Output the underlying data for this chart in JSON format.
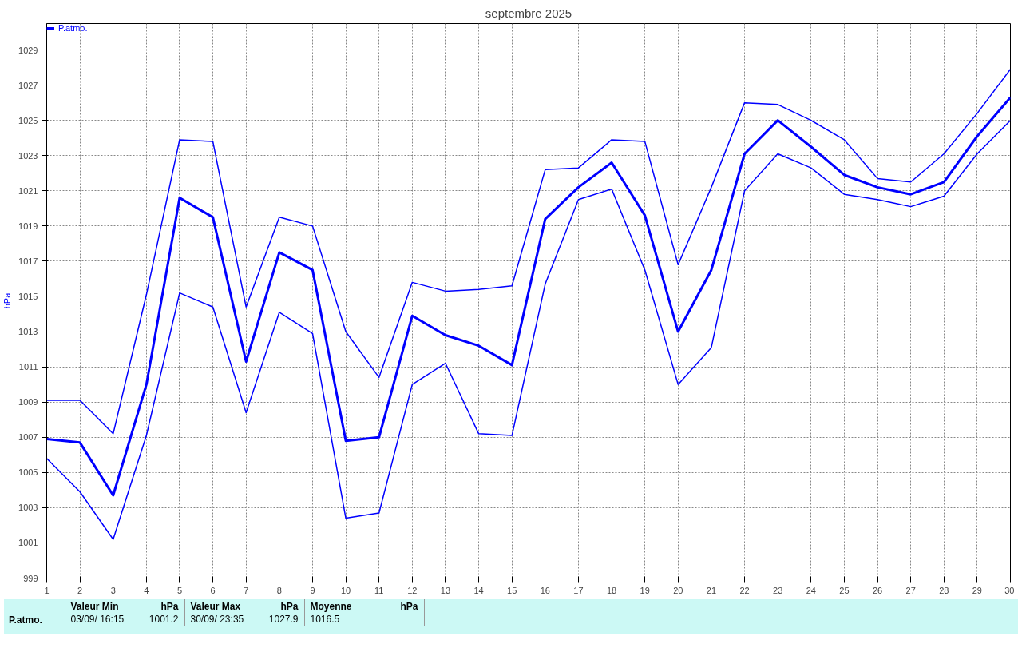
{
  "chart_data": {
    "type": "line",
    "title": "septembre 2025",
    "ylabel": "hPa",
    "x": [
      1,
      2,
      3,
      4,
      5,
      6,
      7,
      8,
      9,
      10,
      11,
      12,
      13,
      14,
      15,
      16,
      17,
      18,
      19,
      20,
      21,
      22,
      23,
      24,
      25,
      26,
      27,
      28,
      29,
      30
    ],
    "series": [
      {
        "color": "#0000ff",
        "values": [
          1009.1,
          1009.1,
          1007.2,
          1015.1,
          1023.9,
          1023.8,
          1014.4,
          1019.5,
          1019.0,
          1013.0,
          1010.4,
          1015.8,
          1015.3,
          1015.4,
          1015.6,
          1022.2,
          1022.3,
          1023.9,
          1023.8,
          1016.8,
          1021.2,
          1026.0,
          1025.9,
          1025.0,
          1023.9,
          1021.7,
          1021.5,
          1023.1,
          1025.4,
          1027.9
        ]
      },
      {
        "name": "P.atmo.",
        "color": "#0000ff",
        "values": [
          1006.9,
          1006.7,
          1003.7,
          1010.0,
          1020.6,
          1019.5,
          1011.3,
          1017.5,
          1016.5,
          1006.8,
          1007.0,
          1013.9,
          1012.8,
          1012.2,
          1011.1,
          1019.4,
          1021.2,
          1022.6,
          1019.6,
          1013.0,
          1016.5,
          1023.1,
          1025.0,
          1023.5,
          1021.9,
          1021.2,
          1020.8,
          1021.5,
          1024.1,
          1026.3
        ]
      },
      {
        "color": "#0000ff",
        "values": [
          1005.8,
          1003.9,
          1001.2,
          1007.1,
          1015.2,
          1014.4,
          1008.4,
          1014.1,
          1012.9,
          1002.4,
          1002.7,
          1010.0,
          1011.2,
          1007.2,
          1007.1,
          1015.7,
          1020.5,
          1021.1,
          1016.5,
          1010.0,
          1012.1,
          1021.0,
          1023.1,
          1022.3,
          1020.8,
          1020.5,
          1020.1,
          1020.7,
          1023.1,
          1025.0
        ]
      }
    ],
    "xlim": [
      1,
      30
    ],
    "xticks": [
      1,
      2,
      3,
      4,
      5,
      6,
      7,
      8,
      9,
      10,
      11,
      12,
      13,
      14,
      15,
      16,
      17,
      18,
      19,
      20,
      21,
      22,
      23,
      24,
      25,
      26,
      27,
      28,
      29,
      30
    ],
    "ylim": [
      999,
      1030.5
    ],
    "yticks": [
      999,
      1001,
      1003,
      1005,
      1007,
      1009,
      1011,
      1013,
      1015,
      1017,
      1019,
      1021,
      1023,
      1025,
      1027,
      1029
    ],
    "grid": true,
    "legend": "top left",
    "line_style": "solid",
    "marker": "none",
    "annotations": [
      "P.atmo.",
      "Valeur Min",
      "hPa",
      "03/09/ 16:15",
      "1001.2",
      "Valeur Max",
      "hPa",
      "30/09/ 23:35",
      "1027.9",
      "Moyenne",
      "hPa",
      "1016.5"
    ]
  }
}
